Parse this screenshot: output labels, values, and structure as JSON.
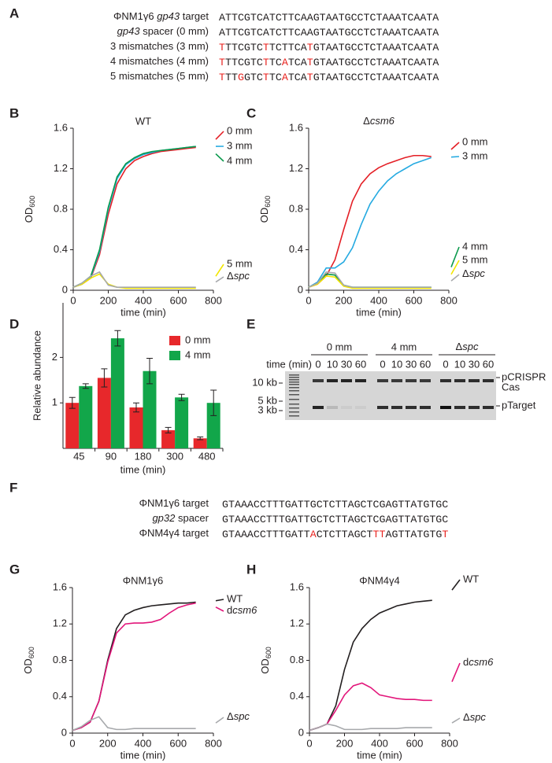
{
  "panel_labels": [
    "A",
    "B",
    "C",
    "D",
    "E",
    "F",
    "G",
    "H"
  ],
  "sequences_a": {
    "rows": [
      {
        "label": [
          {
            "text": "ΦNM1γ6 "
          },
          {
            "text": "gp43",
            "italic": true
          },
          {
            "text": " target"
          }
        ],
        "sequence": [
          {
            "text": "ATTCGTCATCTTCAAGTAATGCCTCTAAATCAATA"
          }
        ]
      },
      {
        "label": [
          {
            "text": "gp43",
            "italic": true
          },
          {
            "text": " spacer (0 mm)"
          }
        ],
        "sequence": [
          {
            "text": "ATTCGTCATCTTCAAGTAATGCCTCTAAATCAATA"
          }
        ]
      },
      {
        "label": [
          {
            "text": "3 mismatches (3 mm)"
          }
        ],
        "sequence": [
          {
            "text": "T",
            "color": "#e8231f"
          },
          {
            "text": "TTCGTC"
          },
          {
            "text": "T",
            "color": "#e8231f"
          },
          {
            "text": "TCTTCA"
          },
          {
            "text": "T",
            "color": "#e8231f"
          },
          {
            "text": "GTAATGCCTCTAAATCAATA"
          }
        ]
      },
      {
        "label": [
          {
            "text": "4 mismatches (4 mm)"
          }
        ],
        "sequence": [
          {
            "text": "T",
            "color": "#e8231f"
          },
          {
            "text": "TTCGTC"
          },
          {
            "text": "T",
            "color": "#e8231f"
          },
          {
            "text": "TC"
          },
          {
            "text": "A",
            "color": "#e8231f"
          },
          {
            "text": "TCA"
          },
          {
            "text": "T",
            "color": "#e8231f"
          },
          {
            "text": "GTAATGCCTCTAAATCAATA"
          }
        ]
      },
      {
        "label": [
          {
            "text": "5 mismatches (5 mm)"
          }
        ],
        "sequence": [
          {
            "text": "T",
            "color": "#e8231f"
          },
          {
            "text": "TT"
          },
          {
            "text": "G",
            "color": "#e8231f"
          },
          {
            "text": "GTC"
          },
          {
            "text": "T",
            "color": "#e8231f"
          },
          {
            "text": "TC"
          },
          {
            "text": "A",
            "color": "#e8231f"
          },
          {
            "text": "TCA"
          },
          {
            "text": "T",
            "color": "#e8231f"
          },
          {
            "text": "GTAATGCCTCTAAATCAATA"
          }
        ]
      }
    ]
  },
  "sequences_f": {
    "rows": [
      {
        "label": [
          {
            "text": "ΦNM1γ6 target"
          }
        ],
        "sequence": [
          {
            "text": "GTAAACCTTTGATTGCTCTTAGCTCGAGTTATGTGC"
          }
        ]
      },
      {
        "label": [
          {
            "text": "gp32",
            "italic": true
          },
          {
            "text": " spacer"
          }
        ],
        "sequence": [
          {
            "text": "GTAAACCTTTGATTGCTCTTAGCTCGAGTTATGTGC"
          }
        ]
      },
      {
        "label": [
          {
            "text": "ΦNM4γ4 target"
          }
        ],
        "sequence": [
          {
            "text": "GTAAACCTTTGATT"
          },
          {
            "text": "A",
            "color": "#e8231f"
          },
          {
            "text": "CTCTTAGCT"
          },
          {
            "text": "TT",
            "color": "#e8231f"
          },
          {
            "text": "AGTTATGTG"
          },
          {
            "text": "T",
            "color": "#e8231f"
          }
        ]
      }
    ]
  },
  "gel": {
    "time_label": "time (min)",
    "groups": [
      {
        "name": "0 mm",
        "lanes": [
          "0",
          "10",
          "30",
          "60"
        ]
      },
      {
        "name": "4 mm",
        "lanes": [
          "0",
          "10",
          "30",
          "60"
        ]
      },
      {
        "name": "Δspc",
        "name_italic_tail": true,
        "lanes": [
          "0",
          "10",
          "30",
          "60"
        ]
      }
    ],
    "markers": [
      "10 kb",
      "5 kb",
      "3 kb"
    ],
    "bands": [
      "pCRISPR",
      "Cas",
      "pTarget"
    ]
  },
  "chart_data": [
    {
      "type": "line",
      "title": "WT",
      "xlabel": "time (min)",
      "ylabel": "OD",
      "ylabel_sub": "600",
      "x": [
        0,
        50,
        100,
        150,
        200,
        250,
        300,
        350,
        400,
        450,
        500,
        550,
        600,
        650,
        700
      ],
      "xlim": [
        0,
        800
      ],
      "xticks": [
        0,
        200,
        400,
        600,
        800
      ],
      "ylim": [
        0,
        1.6
      ],
      "yticks": [
        0,
        0.4,
        0.8,
        1.2,
        1.6
      ],
      "series": [
        {
          "name": "0 mm",
          "color": "#e41f26",
          "values": [
            0.03,
            0.06,
            0.12,
            0.35,
            0.75,
            1.05,
            1.2,
            1.28,
            1.32,
            1.35,
            1.37,
            1.38,
            1.39,
            1.4,
            1.41
          ]
        },
        {
          "name": "3 mm",
          "color": "#25aae1",
          "values": [
            0.03,
            0.06,
            0.13,
            0.38,
            0.8,
            1.1,
            1.24,
            1.3,
            1.34,
            1.36,
            1.38,
            1.39,
            1.4,
            1.41,
            1.42
          ]
        },
        {
          "name": "4 mm",
          "color": "#0b9a4d",
          "values": [
            0.03,
            0.07,
            0.14,
            0.4,
            0.82,
            1.12,
            1.25,
            1.31,
            1.35,
            1.37,
            1.38,
            1.39,
            1.4,
            1.41,
            1.42
          ]
        },
        {
          "name": "5 mm",
          "color": "#f2e600",
          "values": [
            0.03,
            0.06,
            0.12,
            0.16,
            0.06,
            0.03,
            0.02,
            0.02,
            0.02,
            0.02,
            0.02,
            0.02,
            0.02,
            0.02,
            0.02
          ]
        },
        {
          "name": "Δspc",
          "italic_tail": true,
          "color": "#a7a9ac",
          "values": [
            0.03,
            0.07,
            0.14,
            0.18,
            0.05,
            0.03,
            0.03,
            0.03,
            0.03,
            0.03,
            0.03,
            0.03,
            0.03,
            0.03,
            0.03
          ]
        }
      ]
    },
    {
      "type": "line",
      "title": "Δcsm6",
      "title_italic_tail": true,
      "xlabel": "time (min)",
      "ylabel": "OD",
      "ylabel_sub": "600",
      "x": [
        0,
        50,
        100,
        150,
        200,
        250,
        300,
        350,
        400,
        450,
        500,
        550,
        600,
        650,
        700
      ],
      "xlim": [
        0,
        800
      ],
      "xticks": [
        0,
        200,
        400,
        600,
        800
      ],
      "ylim": [
        0,
        1.6
      ],
      "yticks": [
        0,
        0.4,
        0.8,
        1.2,
        1.6
      ],
      "series": [
        {
          "name": "0 mm",
          "color": "#e41f26",
          "values": [
            0.03,
            0.06,
            0.14,
            0.3,
            0.6,
            0.88,
            1.05,
            1.15,
            1.21,
            1.25,
            1.28,
            1.31,
            1.33,
            1.33,
            1.32
          ]
        },
        {
          "name": "3 mm",
          "color": "#25aae1",
          "values": [
            0.03,
            0.08,
            0.22,
            0.22,
            0.28,
            0.42,
            0.65,
            0.85,
            0.98,
            1.08,
            1.15,
            1.2,
            1.25,
            1.28,
            1.31
          ]
        },
        {
          "name": "4 mm",
          "color": "#0b9a4d",
          "values": [
            0.03,
            0.07,
            0.16,
            0.15,
            0.05,
            0.03,
            0.03,
            0.03,
            0.03,
            0.03,
            0.03,
            0.03,
            0.03,
            0.03,
            0.03
          ]
        },
        {
          "name": "5 mm",
          "color": "#f2e600",
          "values": [
            0.03,
            0.06,
            0.14,
            0.13,
            0.04,
            0.02,
            0.02,
            0.02,
            0.02,
            0.02,
            0.02,
            0.02,
            0.02,
            0.02,
            0.02
          ]
        },
        {
          "name": "Δspc",
          "italic_tail": true,
          "color": "#a7a9ac",
          "values": [
            0.03,
            0.07,
            0.18,
            0.17,
            0.05,
            0.03,
            0.03,
            0.03,
            0.03,
            0.03,
            0.03,
            0.03,
            0.03,
            0.03,
            0.03
          ]
        }
      ]
    },
    {
      "type": "bar",
      "xlabel": "time (min)",
      "ylabel": "Relative abundance",
      "categories": [
        45,
        90,
        180,
        300,
        480
      ],
      "ylim": [
        0,
        3.2
      ],
      "yticks": [
        1,
        2
      ],
      "series": [
        {
          "name": "0 mm",
          "color": "#e7282b",
          "values": [
            1.0,
            1.55,
            0.9,
            0.4,
            0.22
          ],
          "errors": [
            0.12,
            0.2,
            0.1,
            0.06,
            0.03
          ]
        },
        {
          "name": "4 mm",
          "color": "#12a64a",
          "values": [
            1.37,
            2.42,
            1.7,
            1.12,
            1.0
          ],
          "errors": [
            0.05,
            0.17,
            0.28,
            0.07,
            0.28
          ]
        }
      ]
    },
    {
      "type": "line",
      "title": "ΦNM1γ6",
      "xlabel": "time (min)",
      "ylabel": "OD",
      "ylabel_sub": "600",
      "x": [
        0,
        50,
        100,
        150,
        200,
        250,
        300,
        350,
        400,
        450,
        500,
        550,
        600,
        650,
        700
      ],
      "xlim": [
        0,
        800
      ],
      "xticks": [
        0,
        200,
        400,
        600,
        800
      ],
      "ylim": [
        0,
        1.6
      ],
      "yticks": [
        0,
        0.4,
        0.8,
        1.2,
        1.6
      ],
      "series": [
        {
          "name": "WT",
          "color": "#231f20",
          "values": [
            0.03,
            0.06,
            0.12,
            0.35,
            0.8,
            1.15,
            1.3,
            1.35,
            1.38,
            1.4,
            1.41,
            1.42,
            1.43,
            1.43,
            1.44
          ]
        },
        {
          "name": "dcsm6",
          "italic_tail": true,
          "color": "#e2157a",
          "values": [
            0.03,
            0.06,
            0.12,
            0.35,
            0.78,
            1.1,
            1.2,
            1.21,
            1.21,
            1.22,
            1.25,
            1.32,
            1.38,
            1.41,
            1.43
          ]
        },
        {
          "name": "Δspc",
          "italic_tail": true,
          "color": "#a7a9ac",
          "values": [
            0.03,
            0.07,
            0.14,
            0.18,
            0.06,
            0.04,
            0.04,
            0.05,
            0.05,
            0.05,
            0.05,
            0.05,
            0.05,
            0.05,
            0.05
          ]
        }
      ]
    },
    {
      "type": "line",
      "title": "ΦNM4γ4",
      "xlabel": "time (min)",
      "ylabel": "OD",
      "ylabel_sub": "600",
      "x": [
        0,
        50,
        100,
        150,
        200,
        250,
        300,
        350,
        400,
        450,
        500,
        550,
        600,
        650,
        700
      ],
      "xlim": [
        0,
        800
      ],
      "xticks": [
        0,
        200,
        400,
        600,
        800
      ],
      "ylim": [
        0,
        1.6
      ],
      "yticks": [
        0,
        0.4,
        0.8,
        1.2,
        1.6
      ],
      "series": [
        {
          "name": "WT",
          "color": "#231f20",
          "values": [
            0.03,
            0.06,
            0.1,
            0.3,
            0.7,
            1.0,
            1.15,
            1.25,
            1.32,
            1.36,
            1.4,
            1.42,
            1.44,
            1.45,
            1.46
          ]
        },
        {
          "name": "dcsm6",
          "italic_tail": true,
          "color": "#e2157a",
          "values": [
            0.03,
            0.06,
            0.1,
            0.25,
            0.42,
            0.52,
            0.55,
            0.5,
            0.42,
            0.4,
            0.38,
            0.37,
            0.37,
            0.36,
            0.36
          ]
        },
        {
          "name": "Δspc",
          "italic_tail": true,
          "color": "#a7a9ac",
          "values": [
            0.03,
            0.06,
            0.1,
            0.08,
            0.04,
            0.04,
            0.04,
            0.05,
            0.05,
            0.05,
            0.05,
            0.06,
            0.06,
            0.06,
            0.06
          ]
        }
      ]
    }
  ]
}
